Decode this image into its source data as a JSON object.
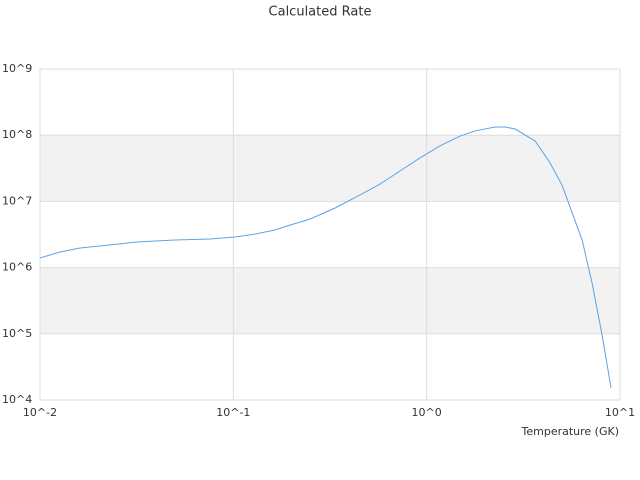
{
  "chart_data": {
    "type": "line",
    "title": "Calculated Rate",
    "x_label": "Temperature (GK)",
    "xscale": "log",
    "yscale": "log",
    "banded_grid": true,
    "band_color": "#f2f2f2",
    "xlim": [
      0.01,
      10
    ],
    "ylim": [
      10000,
      1000000000
    ],
    "xticks": [
      {
        "value": 0.01,
        "label": "10^-2"
      },
      {
        "value": 0.1,
        "label": "10^-1"
      },
      {
        "value": 1,
        "label": "10^0"
      },
      {
        "value": 10,
        "label": "10^1"
      }
    ],
    "yticks": [
      {
        "value": 10000,
        "label": "10^4"
      },
      {
        "value": 100000,
        "label": "10^5"
      },
      {
        "value": 1000000,
        "label": "10^6"
      },
      {
        "value": 10000000,
        "label": "10^7"
      },
      {
        "value": 100000000,
        "label": "10^8"
      },
      {
        "value": 1000000000,
        "label": "10^9"
      }
    ],
    "series": [
      {
        "color": "#5ba3e6",
        "x": [
          0.01,
          0.0127,
          0.0161,
          0.0204,
          0.0318,
          0.05,
          0.0759,
          0.102,
          0.129,
          0.164,
          0.197,
          0.249,
          0.336,
          0.452,
          0.574,
          0.728,
          0.924,
          1.17,
          1.49,
          1.78,
          2.26,
          2.55,
          2.87,
          3.64,
          4.35,
          5.01,
          6.37,
          7.17,
          8.08,
          8.99
        ],
        "values": [
          1400000,
          1720000,
          1980000,
          2120000,
          2440000,
          2610000,
          2700000,
          2900000,
          3200000,
          3700000,
          4400000,
          5400000,
          7950000,
          12500000,
          18300000,
          28800000,
          45300000,
          68800000,
          97000000,
          116000000,
          133000000,
          133000000,
          124000000,
          81700000,
          38000000,
          17700000,
          2610000,
          585000,
          95500,
          15200
        ]
      }
    ]
  }
}
